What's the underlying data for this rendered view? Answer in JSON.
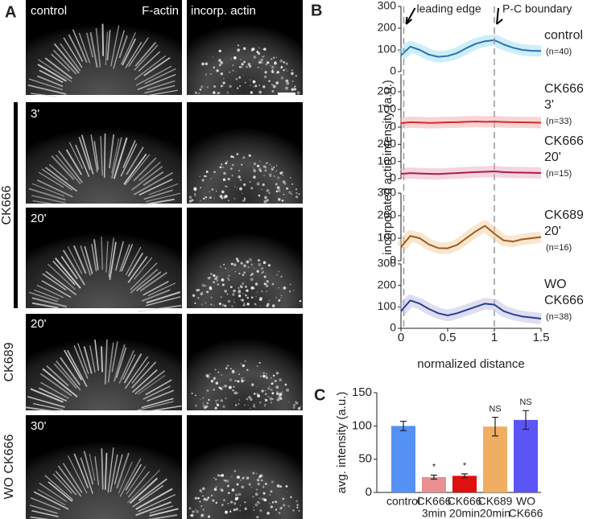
{
  "panel_labels": [
    "A",
    "B",
    "C"
  ],
  "panel_a": {
    "top_left": "control",
    "stain_1": "F-actin",
    "stain_2": "incorp. actin",
    "row_labels": [
      "3'",
      "20'",
      "20'",
      "30'"
    ],
    "groups": [
      "CK666",
      "CK689",
      "WO CK666"
    ]
  },
  "chart_data": [
    {
      "type": "line",
      "label": [
        "control"
      ],
      "n": "(n=40)",
      "xlim": [
        0,
        1.5
      ],
      "ylim": [
        0,
        300
      ],
      "yticks": [
        0,
        100,
        200,
        300
      ],
      "annotations": [
        {
          "x": 0.03,
          "text": "leading edge"
        },
        {
          "x": 1,
          "text": "P-C boundary"
        }
      ],
      "x": [
        0,
        0.1,
        0.2,
        0.3,
        0.4,
        0.5,
        0.6,
        0.7,
        0.8,
        0.9,
        1,
        1.1,
        1.2,
        1.3,
        1.4,
        1.5
      ],
      "series": [
        {
          "color": "#2f6fb0",
          "spread": "#8fdaf2",
          "values": [
            75,
            115,
            100,
            78,
            68,
            72,
            85,
            108,
            128,
            140,
            145,
            125,
            110,
            100,
            96,
            95
          ]
        }
      ]
    },
    {
      "type": "line",
      "label": [
        "CK666",
        "3'"
      ],
      "n": "(n=33)",
      "xlim": [
        0,
        1.5
      ],
      "ylim": [
        0,
        300
      ],
      "yticks": [
        0,
        100,
        200
      ],
      "x": [
        0,
        0.1,
        0.2,
        0.3,
        0.4,
        0.5,
        0.6,
        0.7,
        0.8,
        0.9,
        1,
        1.1,
        1.2,
        1.3,
        1.4,
        1.5
      ],
      "series": [
        {
          "color": "#d42a2a",
          "spread": "#f0a0a0",
          "values": [
            22,
            28,
            26,
            24,
            25,
            27,
            28,
            30,
            32,
            30,
            31,
            29,
            28,
            27,
            26,
            25
          ]
        }
      ]
    },
    {
      "type": "line",
      "label": [
        "CK666",
        "20'"
      ],
      "n": "(n=15)",
      "xlim": [
        0,
        1.5
      ],
      "ylim": [
        0,
        300
      ],
      "yticks": [
        0,
        100,
        200
      ],
      "ylabel": "incorporated actin intensity (a.u.)",
      "x": [
        0,
        0.1,
        0.2,
        0.3,
        0.4,
        0.5,
        0.6,
        0.7,
        0.8,
        0.9,
        1,
        1.1,
        1.2,
        1.3,
        1.4,
        1.5
      ],
      "series": [
        {
          "color": "#a81e4e",
          "spread": "#e9a0bd",
          "values": [
            28,
            32,
            30,
            28,
            27,
            30,
            32,
            35,
            38,
            40,
            42,
            38,
            36,
            35,
            34,
            33
          ]
        }
      ]
    },
    {
      "type": "line",
      "label": [
        "CK689",
        "20'"
      ],
      "n": "(n=16)",
      "xlim": [
        0,
        1.5
      ],
      "ylim": [
        0,
        300
      ],
      "yticks": [
        0,
        100,
        200,
        300
      ],
      "x": [
        0,
        0.1,
        0.2,
        0.3,
        0.4,
        0.5,
        0.6,
        0.7,
        0.8,
        0.9,
        1,
        1.1,
        1.2,
        1.3,
        1.4,
        1.5
      ],
      "series": [
        {
          "color": "#a05c1e",
          "spread": "#f2c79a",
          "values": [
            60,
            110,
            100,
            72,
            56,
            55,
            70,
            100,
            130,
            155,
            120,
            90,
            85,
            95,
            100,
            105
          ]
        }
      ]
    },
    {
      "type": "line",
      "label": [
        "WO",
        "CK666"
      ],
      "n": "(n=38)",
      "xlim": [
        0,
        1.5
      ],
      "ylim": [
        0,
        300
      ],
      "yticks": [
        0,
        100,
        200,
        300
      ],
      "xticks": [
        0,
        0.5,
        1,
        1.5
      ],
      "xlabel": "normalized distance",
      "x": [
        0,
        0.1,
        0.2,
        0.3,
        0.4,
        0.5,
        0.6,
        0.7,
        0.8,
        0.9,
        1,
        1.1,
        1.2,
        1.3,
        1.4,
        1.5
      ],
      "series": [
        {
          "color": "#27408f",
          "spread": "#b7b4de",
          "values": [
            80,
            130,
            115,
            90,
            70,
            60,
            70,
            85,
            100,
            115,
            110,
            80,
            65,
            55,
            50,
            45
          ]
        }
      ]
    },
    {
      "type": "bar",
      "ylabel": "avg. intensity (a.u.)",
      "categories": [
        [
          "control"
        ],
        [
          "CK666",
          "3min"
        ],
        [
          "CK666",
          "20min"
        ],
        [
          "CK689",
          "20min"
        ],
        [
          "WO",
          "CK666"
        ]
      ],
      "values": [
        100,
        23,
        25,
        99,
        109
      ],
      "errors": [
        7,
        3,
        3,
        14,
        14
      ],
      "colors": [
        "#5591f5",
        "#e88f8f",
        "#e01010",
        "#f0ae62",
        "#5b55f5"
      ],
      "annotations": [
        null,
        "*",
        "*",
        "NS",
        "NS"
      ],
      "ylim": [
        0,
        150
      ],
      "yticks": [
        0,
        50,
        100,
        150
      ]
    }
  ]
}
